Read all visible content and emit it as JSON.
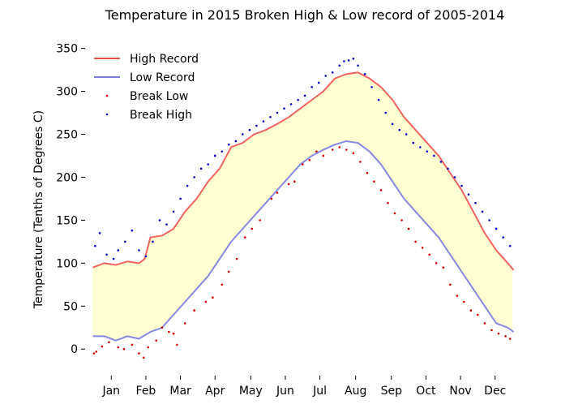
{
  "chart_data": {
    "type": "line",
    "title": "Temperature in 2015 Broken High & Low record of 2005-2014",
    "xlabel": "",
    "ylabel": "Temperature (Tenths of Degrees C)",
    "xlim": [
      -6,
      371
    ],
    "ylim": [
      -30,
      360
    ],
    "yticks": [
      0,
      50,
      100,
      150,
      200,
      250,
      300,
      350
    ],
    "month_ticks": [
      {
        "label": "Jan",
        "day": 16
      },
      {
        "label": "Feb",
        "day": 46
      },
      {
        "label": "Mar",
        "day": 76
      },
      {
        "label": "Apr",
        "day": 106
      },
      {
        "label": "May",
        "day": 137
      },
      {
        "label": "Jun",
        "day": 167
      },
      {
        "label": "Jul",
        "day": 197
      },
      {
        "label": "Aug",
        "day": 228
      },
      {
        "label": "Sep",
        "day": 259
      },
      {
        "label": "Oct",
        "day": 289
      },
      {
        "label": "Nov",
        "day": 319
      },
      {
        "label": "Dec",
        "day": 349
      }
    ],
    "fill_between": {
      "color": "#ffff99",
      "opacity": 0.45
    },
    "grid": false,
    "legend": "upper left",
    "series": [
      {
        "name": "High Record",
        "color": "#ef5350",
        "style": "line",
        "points": [
          [
            0,
            95
          ],
          [
            10,
            100
          ],
          [
            20,
            98
          ],
          [
            30,
            102
          ],
          [
            40,
            100
          ],
          [
            45,
            105
          ],
          [
            50,
            130
          ],
          [
            60,
            132
          ],
          [
            70,
            140
          ],
          [
            80,
            160
          ],
          [
            90,
            175
          ],
          [
            100,
            195
          ],
          [
            110,
            210
          ],
          [
            120,
            235
          ],
          [
            130,
            240
          ],
          [
            140,
            250
          ],
          [
            150,
            255
          ],
          [
            160,
            262
          ],
          [
            170,
            270
          ],
          [
            180,
            280
          ],
          [
            190,
            290
          ],
          [
            200,
            300
          ],
          [
            210,
            315
          ],
          [
            220,
            320
          ],
          [
            230,
            322
          ],
          [
            240,
            315
          ],
          [
            250,
            305
          ],
          [
            260,
            290
          ],
          [
            270,
            270
          ],
          [
            280,
            255
          ],
          [
            290,
            240
          ],
          [
            300,
            225
          ],
          [
            310,
            205
          ],
          [
            320,
            185
          ],
          [
            330,
            160
          ],
          [
            340,
            135
          ],
          [
            350,
            115
          ],
          [
            360,
            100
          ],
          [
            365,
            92
          ]
        ]
      },
      {
        "name": "Low Record",
        "color": "#7b7be3",
        "style": "line",
        "points": [
          [
            0,
            15
          ],
          [
            10,
            15
          ],
          [
            20,
            10
          ],
          [
            30,
            15
          ],
          [
            40,
            12
          ],
          [
            50,
            20
          ],
          [
            60,
            25
          ],
          [
            70,
            40
          ],
          [
            80,
            55
          ],
          [
            90,
            70
          ],
          [
            100,
            85
          ],
          [
            110,
            105
          ],
          [
            120,
            125
          ],
          [
            130,
            140
          ],
          [
            140,
            155
          ],
          [
            150,
            170
          ],
          [
            160,
            185
          ],
          [
            170,
            200
          ],
          [
            180,
            215
          ],
          [
            190,
            225
          ],
          [
            200,
            232
          ],
          [
            210,
            238
          ],
          [
            220,
            242
          ],
          [
            230,
            240
          ],
          [
            240,
            230
          ],
          [
            250,
            215
          ],
          [
            260,
            195
          ],
          [
            270,
            175
          ],
          [
            280,
            160
          ],
          [
            290,
            145
          ],
          [
            300,
            130
          ],
          [
            310,
            110
          ],
          [
            320,
            90
          ],
          [
            330,
            70
          ],
          [
            340,
            50
          ],
          [
            350,
            30
          ],
          [
            360,
            25
          ],
          [
            365,
            20
          ]
        ]
      },
      {
        "name": "Break Low",
        "color": "#d00000",
        "style": "scatter",
        "points": [
          [
            1,
            -5
          ],
          [
            3,
            -3
          ],
          [
            8,
            3
          ],
          [
            14,
            8
          ],
          [
            22,
            2
          ],
          [
            27,
            0
          ],
          [
            34,
            5
          ],
          [
            40,
            -5
          ],
          [
            44,
            -10
          ],
          [
            48,
            2
          ],
          [
            55,
            10
          ],
          [
            60,
            25
          ],
          [
            66,
            20
          ],
          [
            70,
            18
          ],
          [
            73,
            5
          ],
          [
            80,
            30
          ],
          [
            88,
            45
          ],
          [
            98,
            55
          ],
          [
            104,
            60
          ],
          [
            112,
            75
          ],
          [
            118,
            90
          ],
          [
            125,
            105
          ],
          [
            132,
            130
          ],
          [
            138,
            140
          ],
          [
            145,
            150
          ],
          [
            155,
            175
          ],
          [
            160,
            182
          ],
          [
            170,
            192
          ],
          [
            175,
            195
          ],
          [
            182,
            215
          ],
          [
            188,
            220
          ],
          [
            194,
            230
          ],
          [
            200,
            225
          ],
          [
            208,
            232
          ],
          [
            214,
            235
          ],
          [
            220,
            232
          ],
          [
            226,
            228
          ],
          [
            232,
            218
          ],
          [
            238,
            205
          ],
          [
            244,
            195
          ],
          [
            250,
            185
          ],
          [
            256,
            170
          ],
          [
            262,
            158
          ],
          [
            268,
            150
          ],
          [
            274,
            140
          ],
          [
            280,
            125
          ],
          [
            286,
            118
          ],
          [
            292,
            110
          ],
          [
            298,
            100
          ],
          [
            304,
            95
          ],
          [
            310,
            75
          ],
          [
            316,
            62
          ],
          [
            322,
            55
          ],
          [
            328,
            45
          ],
          [
            334,
            40
          ],
          [
            340,
            30
          ],
          [
            346,
            22
          ],
          [
            352,
            18
          ],
          [
            358,
            15
          ],
          [
            362,
            12
          ]
        ]
      },
      {
        "name": "Break High",
        "color": "#0000c0",
        "style": "scatter",
        "points": [
          [
            2,
            120
          ],
          [
            6,
            135
          ],
          [
            12,
            110
          ],
          [
            18,
            105
          ],
          [
            22,
            115
          ],
          [
            28,
            125
          ],
          [
            34,
            138
          ],
          [
            40,
            115
          ],
          [
            46,
            108
          ],
          [
            52,
            125
          ],
          [
            58,
            150
          ],
          [
            64,
            145
          ],
          [
            70,
            160
          ],
          [
            76,
            175
          ],
          [
            82,
            190
          ],
          [
            88,
            200
          ],
          [
            94,
            210
          ],
          [
            100,
            215
          ],
          [
            106,
            225
          ],
          [
            112,
            230
          ],
          [
            118,
            238
          ],
          [
            124,
            242
          ],
          [
            130,
            250
          ],
          [
            136,
            255
          ],
          [
            142,
            260
          ],
          [
            148,
            265
          ],
          [
            154,
            270
          ],
          [
            160,
            275
          ],
          [
            166,
            280
          ],
          [
            172,
            285
          ],
          [
            178,
            290
          ],
          [
            184,
            295
          ],
          [
            190,
            305
          ],
          [
            196,
            310
          ],
          [
            202,
            318
          ],
          [
            208,
            322
          ],
          [
            214,
            330
          ],
          [
            218,
            335
          ],
          [
            222,
            336
          ],
          [
            226,
            338
          ],
          [
            230,
            330
          ],
          [
            236,
            320
          ],
          [
            242,
            305
          ],
          [
            248,
            290
          ],
          [
            254,
            275
          ],
          [
            260,
            262
          ],
          [
            266,
            255
          ],
          [
            272,
            250
          ],
          [
            278,
            240
          ],
          [
            284,
            235
          ],
          [
            290,
            230
          ],
          [
            296,
            225
          ],
          [
            302,
            218
          ],
          [
            308,
            210
          ],
          [
            314,
            200
          ],
          [
            320,
            190
          ],
          [
            326,
            180
          ],
          [
            332,
            170
          ],
          [
            338,
            160
          ],
          [
            344,
            150
          ],
          [
            350,
            140
          ],
          [
            356,
            130
          ],
          [
            362,
            120
          ]
        ]
      }
    ]
  }
}
